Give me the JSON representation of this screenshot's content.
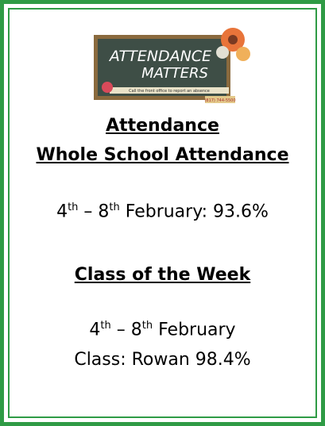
{
  "banner": {
    "line1": "ATTENDANCE",
    "line2": "MATTERS",
    "note": "Call the front office to report an absence",
    "phone": "(817) 744-5500"
  },
  "heading": "Attendance",
  "subheading": "Whole School Attendance",
  "whole_school": {
    "start": "4",
    "start_sup": "th",
    "mid": " – 8",
    "end_sup": "th",
    "rest": " February: 93.6%"
  },
  "class_heading": "Class of the Week",
  "class_week": {
    "start": "4",
    "start_sup": "th",
    "mid": " – 8",
    "end_sup": "th",
    "rest": " February"
  },
  "class_result": "Class: Rowan 98.4%"
}
